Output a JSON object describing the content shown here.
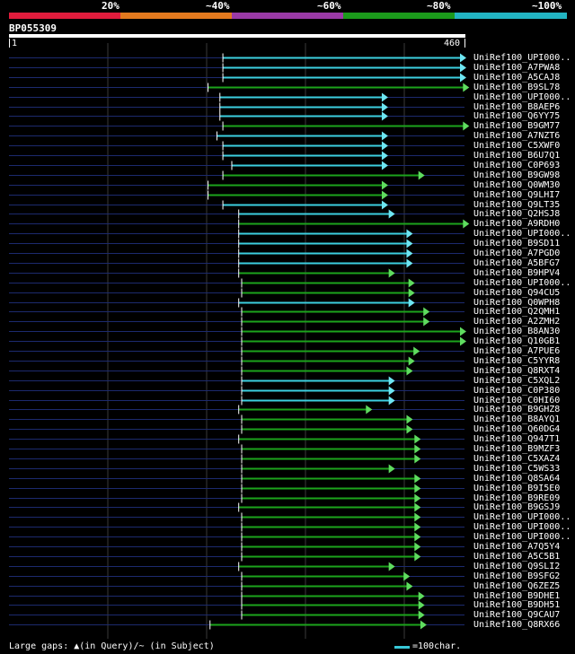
{
  "legend": {
    "labels": [
      "20%",
      "~40%",
      "~60%",
      "~80%",
      "~100%"
    ],
    "colors": [
      "#e01c3c",
      "#e47a1e",
      "#9a3aa6",
      "#1b9a1b",
      "#22b4c2"
    ]
  },
  "query": {
    "id": "BP055309",
    "start": "1",
    "end": "460"
  },
  "hit_colors": {
    "cyan": "#3ccfe0",
    "green": "#1ca31c",
    "arrow_cyan": "#6ee6f2",
    "arrow_green": "#5fdc5f",
    "track": "#1c2a6e"
  },
  "hits": [
    {
      "name": "UniRef100_UPI000..",
      "start": 216,
      "end": 460,
      "color": "cyan"
    },
    {
      "name": "UniRef100_A7PWA8",
      "start": 216,
      "end": 460,
      "color": "cyan"
    },
    {
      "name": "UniRef100_A5CAJ8",
      "start": 216,
      "end": 460,
      "color": "cyan"
    },
    {
      "name": "UniRef100_B9SL78",
      "start": 201,
      "end": 463,
      "color": "green"
    },
    {
      "name": "UniRef100_UPI000..",
      "start": 213,
      "end": 381,
      "color": "cyan"
    },
    {
      "name": "UniRef100_B8AEP6",
      "start": 213,
      "end": 381,
      "color": "cyan"
    },
    {
      "name": "UniRef100_Q6YY75",
      "start": 213,
      "end": 381,
      "color": "cyan"
    },
    {
      "name": "UniRef100_B9GM77",
      "start": 216,
      "end": 463,
      "color": "green"
    },
    {
      "name": "UniRef100_A7NZT6",
      "start": 210,
      "end": 381,
      "color": "cyan"
    },
    {
      "name": "UniRef100_C5XWF0",
      "start": 216,
      "end": 381,
      "color": "cyan"
    },
    {
      "name": "UniRef100_B6U7Q1",
      "start": 216,
      "end": 381,
      "color": "cyan"
    },
    {
      "name": "UniRef100_C0P693",
      "start": 225,
      "end": 381,
      "color": "cyan"
    },
    {
      "name": "UniRef100_B9GW98",
      "start": 216,
      "end": 418,
      "color": "green"
    },
    {
      "name": "UniRef100_Q0WM30",
      "start": 201,
      "end": 381,
      "color": "green"
    },
    {
      "name": "UniRef100_Q9LHI7",
      "start": 201,
      "end": 381,
      "color": "green"
    },
    {
      "name": "UniRef100_Q9LT35",
      "start": 216,
      "end": 381,
      "color": "cyan"
    },
    {
      "name": "UniRef100_Q2HSJ8",
      "start": 232,
      "end": 388,
      "color": "cyan"
    },
    {
      "name": "UniRef100_A9RDH0",
      "start": 232,
      "end": 463,
      "color": "green"
    },
    {
      "name": "UniRef100_UPI000..",
      "start": 232,
      "end": 406,
      "color": "cyan"
    },
    {
      "name": "UniRef100_B9SD11",
      "start": 232,
      "end": 406,
      "color": "cyan"
    },
    {
      "name": "UniRef100_A7PGD0",
      "start": 232,
      "end": 406,
      "color": "cyan"
    },
    {
      "name": "UniRef100_A5BFG7",
      "start": 232,
      "end": 406,
      "color": "cyan"
    },
    {
      "name": "UniRef100_B9HPV4",
      "start": 232,
      "end": 388,
      "color": "green"
    },
    {
      "name": "UniRef100_UPI000..",
      "start": 235,
      "end": 408,
      "color": "green"
    },
    {
      "name": "UniRef100_Q94CU5",
      "start": 235,
      "end": 408,
      "color": "green"
    },
    {
      "name": "UniRef100_Q0WPH8",
      "start": 232,
      "end": 408,
      "color": "cyan"
    },
    {
      "name": "UniRef100_Q2QMH1",
      "start": 235,
      "end": 423,
      "color": "green"
    },
    {
      "name": "UniRef100_A2ZMH2",
      "start": 235,
      "end": 423,
      "color": "green"
    },
    {
      "name": "UniRef100_B8AN30",
      "start": 235,
      "end": 460,
      "color": "green"
    },
    {
      "name": "UniRef100_Q10GB1",
      "start": 235,
      "end": 460,
      "color": "green"
    },
    {
      "name": "UniRef100_A7PUE6",
      "start": 235,
      "end": 413,
      "color": "green"
    },
    {
      "name": "UniRef100_C5YYR8",
      "start": 235,
      "end": 408,
      "color": "green"
    },
    {
      "name": "UniRef100_Q8RXT4",
      "start": 235,
      "end": 406,
      "color": "green"
    },
    {
      "name": "UniRef100_C5XQL2",
      "start": 235,
      "end": 388,
      "color": "cyan"
    },
    {
      "name": "UniRef100_C0P380",
      "start": 235,
      "end": 388,
      "color": "cyan"
    },
    {
      "name": "UniRef100_C0HI60",
      "start": 235,
      "end": 388,
      "color": "cyan"
    },
    {
      "name": "UniRef100_B9GHZ8",
      "start": 232,
      "end": 365,
      "color": "green"
    },
    {
      "name": "UniRef100_B8AYQ1",
      "start": 235,
      "end": 406,
      "color": "green"
    },
    {
      "name": "UniRef100_Q60DG4",
      "start": 235,
      "end": 406,
      "color": "green"
    },
    {
      "name": "UniRef100_Q947T1",
      "start": 232,
      "end": 414,
      "color": "green"
    },
    {
      "name": "UniRef100_B9MZF3",
      "start": 235,
      "end": 414,
      "color": "green"
    },
    {
      "name": "UniRef100_C5XAZ4",
      "start": 235,
      "end": 414,
      "color": "green"
    },
    {
      "name": "UniRef100_C5WS33",
      "start": 235,
      "end": 388,
      "color": "green"
    },
    {
      "name": "UniRef100_Q8SA64",
      "start": 235,
      "end": 414,
      "color": "green"
    },
    {
      "name": "UniRef100_B9I5E0",
      "start": 235,
      "end": 414,
      "color": "green"
    },
    {
      "name": "UniRef100_B9RE09",
      "start": 235,
      "end": 414,
      "color": "green"
    },
    {
      "name": "UniRef100_B9GSJ9",
      "start": 232,
      "end": 414,
      "color": "green"
    },
    {
      "name": "UniRef100_UPI000..",
      "start": 235,
      "end": 414,
      "color": "green"
    },
    {
      "name": "UniRef100_UPI000..",
      "start": 235,
      "end": 414,
      "color": "green"
    },
    {
      "name": "UniRef100_UPI000..",
      "start": 235,
      "end": 414,
      "color": "green"
    },
    {
      "name": "UniRef100_A7Q5Y4",
      "start": 235,
      "end": 414,
      "color": "green"
    },
    {
      "name": "UniRef100_A5C5B1",
      "start": 235,
      "end": 414,
      "color": "green"
    },
    {
      "name": "UniRef100_Q9SLI2",
      "start": 232,
      "end": 388,
      "color": "green"
    },
    {
      "name": "UniRef100_B9SFG2",
      "start": 235,
      "end": 403,
      "color": "green"
    },
    {
      "name": "UniRef100_Q6ZEZ5",
      "start": 235,
      "end": 406,
      "color": "green"
    },
    {
      "name": "UniRef100_B9DHE1",
      "start": 235,
      "end": 418,
      "color": "green"
    },
    {
      "name": "UniRef100_B9DH51",
      "start": 235,
      "end": 418,
      "color": "green"
    },
    {
      "name": "UniRef100_Q9CAU7",
      "start": 235,
      "end": 418,
      "color": "green"
    },
    {
      "name": "UniRef100_Q8RX66",
      "start": 203,
      "end": 420,
      "color": "green"
    }
  ],
  "footer": {
    "gaps_text": "Large gaps: ▲(in Query)/~ (in Subject)",
    "scale_text": "=100char."
  }
}
